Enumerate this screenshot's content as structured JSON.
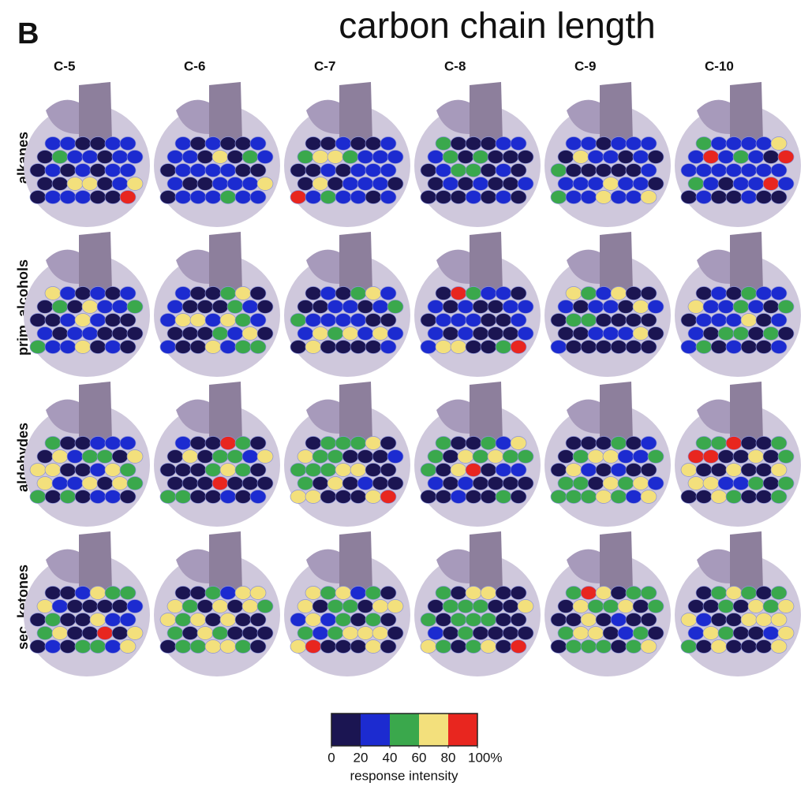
{
  "panel_label": "B",
  "title": "carbon chain length",
  "columns": [
    "C-5",
    "C-6",
    "C-7",
    "C-8",
    "C-9",
    "C-10"
  ],
  "rows": [
    "alkanes",
    "prim. alcohols",
    "aldehydes",
    "sec. ketones"
  ],
  "colorbar": {
    "colors": [
      "#1b1552",
      "#1c2bd0",
      "#3aa84c",
      "#f3e07c",
      "#e8261f"
    ],
    "ticks": [
      0,
      20,
      40,
      60,
      80,
      {
        "value": 100,
        "label": "100%"
      }
    ],
    "lim": [
      0,
      100
    ],
    "label": "response intensity"
  }
}
